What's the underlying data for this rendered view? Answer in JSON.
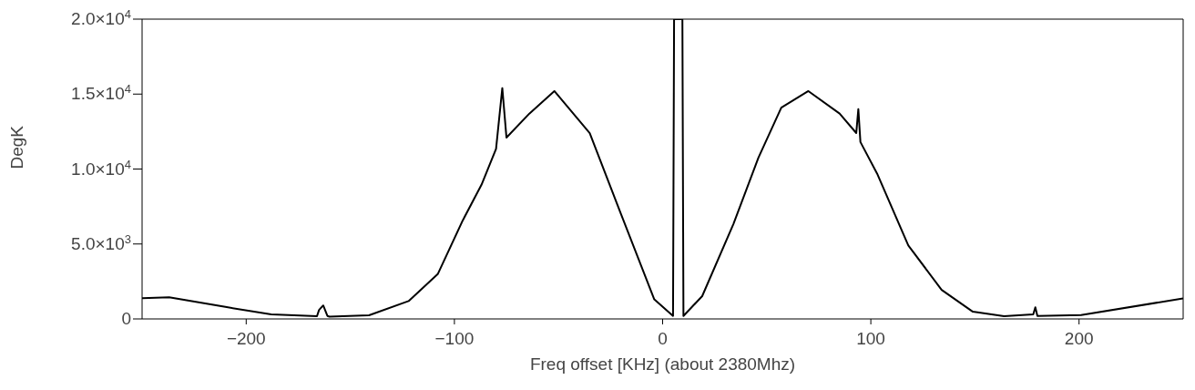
{
  "chart_data": {
    "type": "line",
    "xlabel": "Freq offset [KHz] (about 2380Mhz)",
    "ylabel": "DegK",
    "x": [
      -250,
      -237,
      -210,
      -188,
      -166,
      -165,
      -163,
      -161,
      -160,
      -141,
      -122,
      -108,
      -96,
      -87,
      -80,
      -77,
      -75,
      -64,
      -52,
      -35,
      -20,
      -4,
      5,
      5.5,
      9.5,
      10,
      19,
      34,
      46,
      57,
      70,
      85,
      93,
      94,
      95,
      103,
      118,
      134,
      149,
      164,
      178,
      179,
      180,
      201,
      250
    ],
    "series": [
      {
        "color": "#000000",
        "values": [
          1390,
          1450,
          800,
          300,
          180,
          600,
          900,
          200,
          150,
          240,
          1190,
          2990,
          6570,
          8950,
          11340,
          15400,
          12100,
          13700,
          15200,
          12400,
          7000,
          1300,
          200,
          20000,
          20000,
          200,
          1520,
          6330,
          10750,
          14100,
          15200,
          13700,
          12400,
          14000,
          11800,
          9700,
          4900,
          1940,
          480,
          180,
          300,
          780,
          200,
          260,
          1370
        ]
      }
    ],
    "xlim": [
      -250,
      250
    ],
    "xticks": [
      {
        "value": -200,
        "label": "−200"
      },
      {
        "value": -100,
        "label": "−100"
      },
      0,
      100,
      200
    ],
    "ylim": [
      0,
      20000
    ],
    "yticks": [
      0,
      {
        "value": 5000,
        "label": "5.0×10$^{3}$"
      },
      {
        "value": 10000,
        "label": "1.0×10$^{4}$"
      },
      {
        "value": 15000,
        "label": "1.5×10$^{4}$"
      },
      {
        "value": 20000,
        "label": "2.0×10$^{4}$"
      }
    ],
    "marker": "none",
    "line_style": "solid"
  }
}
